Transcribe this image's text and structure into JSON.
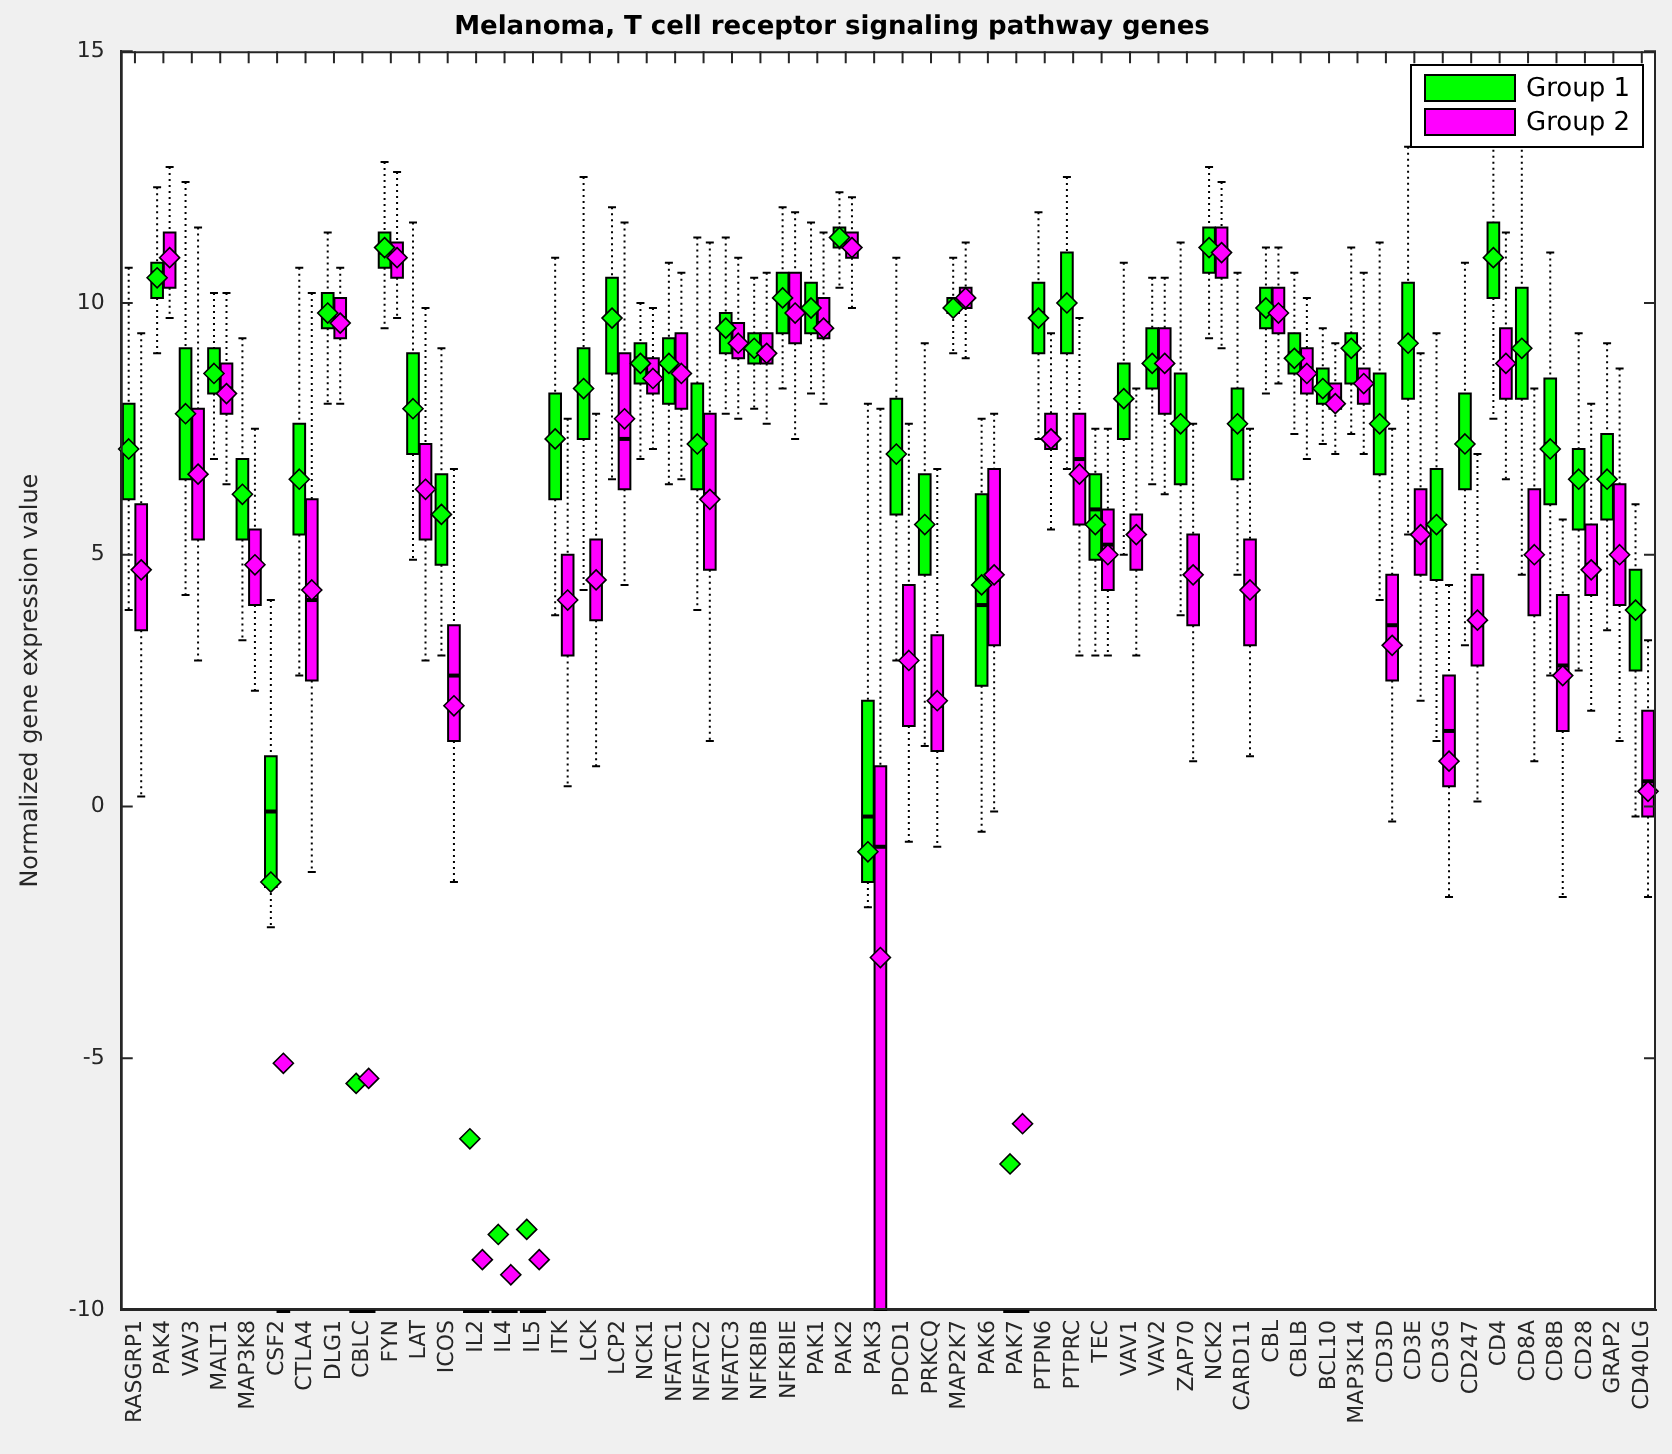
{
  "chart_data": {
    "type": "box",
    "title": "Melanoma, T cell receptor signaling pathway genes",
    "ylabel": "Normalized gene expression value",
    "categories": [
      "RASGRP1",
      "PAK4",
      "VAV3",
      "MALT1",
      "MAP3K8",
      "CSF2",
      "CTLA4",
      "DLG1",
      "CBLC",
      "FYN",
      "LAT",
      "ICOS",
      "IL2",
      "IL4",
      "IL5",
      "ITK",
      "LCK",
      "LCP2",
      "NCK1",
      "NFATC1",
      "NFATC2",
      "NFATC3",
      "NFKBIB",
      "NFKBIE",
      "PAK1",
      "PAK2",
      "PAK3",
      "PDCD1",
      "PRKCQ",
      "MAP2K7",
      "PAK6",
      "PAK7",
      "PTPN6",
      "PTPRC",
      "TEC",
      "VAV1",
      "VAV2",
      "ZAP70",
      "NCK2",
      "CARD11",
      "CBL",
      "CBLB",
      "BCL10",
      "MAP3K14",
      "CD3D",
      "CD3E",
      "CD3G",
      "CD247",
      "CD4",
      "CD8A",
      "CD8B",
      "CD28",
      "GRAP2",
      "CD40LG"
    ],
    "ylim": [
      -10,
      15
    ],
    "yticks": [
      -10,
      -5,
      0,
      5,
      10,
      15
    ],
    "legend": "top right",
    "marker": "diamond",
    "series": [
      {
        "name": "Group 1",
        "color": "#00ff00",
        "boxes": [
          {
            "low": 3.9,
            "q1": 6.1,
            "median": 7.1,
            "q3": 8.0,
            "high": 10.7,
            "mean": 7.1
          },
          {
            "low": 9.0,
            "q1": 10.1,
            "median": 10.6,
            "q3": 10.8,
            "high": 12.3,
            "mean": 10.5
          },
          {
            "low": 4.2,
            "q1": 6.5,
            "median": 7.8,
            "q3": 9.1,
            "high": 12.4,
            "mean": 7.8
          },
          {
            "low": 6.9,
            "q1": 8.2,
            "median": 8.6,
            "q3": 9.1,
            "high": 10.2,
            "mean": 8.6
          },
          {
            "low": 3.3,
            "q1": 5.3,
            "median": 6.2,
            "q3": 6.9,
            "high": 9.3,
            "mean": 6.2
          },
          {
            "low": -2.4,
            "q1": -1.6,
            "median": -0.1,
            "q3": 1.0,
            "high": 4.1,
            "mean": -1.5
          },
          {
            "low": 2.6,
            "q1": 5.4,
            "median": 6.5,
            "q3": 7.6,
            "high": 10.7,
            "mean": 6.5
          },
          {
            "low": 8.0,
            "q1": 9.5,
            "median": 9.8,
            "q3": 10.2,
            "high": 11.4,
            "mean": 9.8
          },
          {
            "low": -10,
            "q1": -10,
            "median": -10,
            "q3": -10,
            "high": -10,
            "mean": -5.5
          },
          {
            "low": 9.5,
            "q1": 10.7,
            "median": 11.0,
            "q3": 11.4,
            "high": 12.8,
            "mean": 11.1
          },
          {
            "low": 4.9,
            "q1": 7.0,
            "median": 7.9,
            "q3": 9.0,
            "high": 11.6,
            "mean": 7.9
          },
          {
            "low": 3.0,
            "q1": 4.8,
            "median": 5.8,
            "q3": 6.6,
            "high": 9.1,
            "mean": 5.8
          },
          {
            "low": -10,
            "q1": -10,
            "median": -10,
            "q3": -10,
            "high": -10,
            "mean": -6.6
          },
          {
            "low": -10,
            "q1": -10,
            "median": -10,
            "q3": -10,
            "high": -10,
            "mean": -8.5
          },
          {
            "low": -10,
            "q1": -10,
            "median": -10,
            "q3": -10,
            "high": -10,
            "mean": -8.4
          },
          {
            "low": 3.8,
            "q1": 6.1,
            "median": 7.3,
            "q3": 8.2,
            "high": 10.9,
            "mean": 7.3
          },
          {
            "low": 4.3,
            "q1": 7.3,
            "median": 8.3,
            "q3": 9.1,
            "high": 12.5,
            "mean": 8.3
          },
          {
            "low": 6.5,
            "q1": 8.6,
            "median": 9.7,
            "q3": 10.5,
            "high": 11.9,
            "mean": 9.7
          },
          {
            "low": 6.9,
            "q1": 8.4,
            "median": 8.9,
            "q3": 9.2,
            "high": 10.0,
            "mean": 8.8
          },
          {
            "low": 6.4,
            "q1": 8.0,
            "median": 8.8,
            "q3": 9.3,
            "high": 10.8,
            "mean": 8.8
          },
          {
            "low": 3.9,
            "q1": 6.3,
            "median": 7.2,
            "q3": 8.4,
            "high": 11.3,
            "mean": 7.2
          },
          {
            "low": 7.8,
            "q1": 9.0,
            "median": 9.5,
            "q3": 9.8,
            "high": 11.3,
            "mean": 9.5
          },
          {
            "low": 7.9,
            "q1": 8.8,
            "median": 9.1,
            "q3": 9.4,
            "high": 10.5,
            "mean": 9.1
          },
          {
            "low": 8.3,
            "q1": 9.4,
            "median": 10.1,
            "q3": 10.6,
            "high": 11.9,
            "mean": 10.1
          },
          {
            "low": 8.2,
            "q1": 9.4,
            "median": 9.9,
            "q3": 10.4,
            "high": 11.6,
            "mean": 9.9
          },
          {
            "low": 10.3,
            "q1": 11.1,
            "median": 11.3,
            "q3": 11.5,
            "high": 12.2,
            "mean": 11.3
          },
          {
            "low": -2.0,
            "q1": -1.5,
            "median": -0.2,
            "q3": 2.1,
            "high": 8.0,
            "mean": -0.9
          },
          {
            "low": 2.9,
            "q1": 5.8,
            "median": 7.0,
            "q3": 8.1,
            "high": 10.9,
            "mean": 7.0
          },
          {
            "low": 1.2,
            "q1": 4.6,
            "median": 5.6,
            "q3": 6.6,
            "high": 9.2,
            "mean": 5.6
          },
          {
            "low": 9.0,
            "q1": 9.8,
            "median": 9.9,
            "q3": 10.1,
            "high": 10.9,
            "mean": 9.9
          },
          {
            "low": -0.5,
            "q1": 2.4,
            "median": 4.0,
            "q3": 6.2,
            "high": 7.7,
            "mean": 4.4
          },
          {
            "low": -10,
            "q1": -10,
            "median": -10,
            "q3": -10,
            "high": -10,
            "mean": -7.1
          },
          {
            "low": 7.3,
            "q1": 9.0,
            "median": 9.8,
            "q3": 10.4,
            "high": 11.8,
            "mean": 9.7
          },
          {
            "low": 6.7,
            "q1": 9.0,
            "median": 10.0,
            "q3": 11.0,
            "high": 12.5,
            "mean": 10.0
          },
          {
            "low": 3.0,
            "q1": 4.9,
            "median": 5.9,
            "q3": 6.6,
            "high": 7.5,
            "mean": 5.6
          },
          {
            "low": 5.0,
            "q1": 7.3,
            "median": 8.1,
            "q3": 8.8,
            "high": 10.8,
            "mean": 8.1
          },
          {
            "low": 6.4,
            "q1": 8.3,
            "median": 8.8,
            "q3": 9.5,
            "high": 10.5,
            "mean": 8.8
          },
          {
            "low": 3.8,
            "q1": 6.4,
            "median": 7.6,
            "q3": 8.6,
            "high": 11.2,
            "mean": 7.6
          },
          {
            "low": 9.3,
            "q1": 10.6,
            "median": 11.1,
            "q3": 11.5,
            "high": 12.7,
            "mean": 11.1
          },
          {
            "low": 4.6,
            "q1": 6.5,
            "median": 7.5,
            "q3": 8.3,
            "high": 10.6,
            "mean": 7.6
          },
          {
            "low": 8.2,
            "q1": 9.5,
            "median": 9.9,
            "q3": 10.3,
            "high": 11.1,
            "mean": 9.9
          },
          {
            "low": 7.4,
            "q1": 8.6,
            "median": 9.0,
            "q3": 9.4,
            "high": 10.6,
            "mean": 8.9
          },
          {
            "low": 7.2,
            "q1": 8.0,
            "median": 8.3,
            "q3": 8.7,
            "high": 9.5,
            "mean": 8.3
          },
          {
            "low": 7.4,
            "q1": 8.4,
            "median": 9.0,
            "q3": 9.4,
            "high": 11.1,
            "mean": 9.1
          },
          {
            "low": 4.1,
            "q1": 6.6,
            "median": 7.6,
            "q3": 8.6,
            "high": 11.2,
            "mean": 7.6
          },
          {
            "low": 5.4,
            "q1": 8.1,
            "median": 9.2,
            "q3": 10.4,
            "high": 13.1,
            "mean": 9.2
          },
          {
            "low": 1.3,
            "q1": 4.5,
            "median": 5.6,
            "q3": 6.7,
            "high": 9.4,
            "mean": 5.6
          },
          {
            "low": 3.2,
            "q1": 6.3,
            "median": 7.2,
            "q3": 8.2,
            "high": 10.8,
            "mean": 7.2
          },
          {
            "low": 7.7,
            "q1": 10.1,
            "median": 10.9,
            "q3": 11.6,
            "high": 13.4,
            "mean": 10.9
          },
          {
            "low": 4.6,
            "q1": 8.1,
            "median": 9.2,
            "q3": 10.3,
            "high": 13.4,
            "mean": 9.1
          },
          {
            "low": 2.6,
            "q1": 6.0,
            "median": 7.2,
            "q3": 8.5,
            "high": 11.0,
            "mean": 7.1
          },
          {
            "low": 2.7,
            "q1": 5.5,
            "median": 6.5,
            "q3": 7.1,
            "high": 9.4,
            "mean": 6.5
          },
          {
            "low": 3.5,
            "q1": 5.7,
            "median": 6.4,
            "q3": 7.4,
            "high": 9.2,
            "mean": 6.5
          },
          {
            "low": -0.2,
            "q1": 2.7,
            "median": 3.9,
            "q3": 4.7,
            "high": 6.0,
            "mean": 3.9
          }
        ]
      },
      {
        "name": "Group 2",
        "color": "#ff00ff",
        "boxes": [
          {
            "low": 0.2,
            "q1": 3.5,
            "median": 4.7,
            "q3": 6.0,
            "high": 9.4,
            "mean": 4.7
          },
          {
            "low": 9.7,
            "q1": 10.3,
            "median": 10.9,
            "q3": 11.4,
            "high": 12.7,
            "mean": 10.9
          },
          {
            "low": 2.9,
            "q1": 5.3,
            "median": 6.6,
            "q3": 7.9,
            "high": 11.5,
            "mean": 6.6
          },
          {
            "low": 6.4,
            "q1": 7.8,
            "median": 8.3,
            "q3": 8.8,
            "high": 10.2,
            "mean": 8.2
          },
          {
            "low": 2.3,
            "q1": 4.0,
            "median": 4.8,
            "q3": 5.5,
            "high": 7.5,
            "mean": 4.8
          },
          {
            "low": -10,
            "q1": -10,
            "median": -10,
            "q3": -10,
            "high": -10,
            "mean": -5.1
          },
          {
            "low": -1.3,
            "q1": 2.5,
            "median": 4.1,
            "q3": 6.1,
            "high": 10.2,
            "mean": 4.3
          },
          {
            "low": 8.0,
            "q1": 9.3,
            "median": 9.7,
            "q3": 10.1,
            "high": 10.7,
            "mean": 9.6
          },
          {
            "low": -10,
            "q1": -10,
            "median": -10,
            "q3": -10,
            "high": -10,
            "mean": -5.4
          },
          {
            "low": 9.7,
            "q1": 10.5,
            "median": 10.9,
            "q3": 11.2,
            "high": 12.6,
            "mean": 10.9
          },
          {
            "low": 2.9,
            "q1": 5.3,
            "median": 6.3,
            "q3": 7.2,
            "high": 9.9,
            "mean": 6.3
          },
          {
            "low": -1.5,
            "q1": 1.3,
            "median": 2.6,
            "q3": 3.6,
            "high": 6.7,
            "mean": 2.0
          },
          {
            "low": -10,
            "q1": -10,
            "median": -10,
            "q3": -10,
            "high": -10,
            "mean": -9.0
          },
          {
            "low": -10,
            "q1": -10,
            "median": -10,
            "q3": -10,
            "high": -10,
            "mean": -9.3
          },
          {
            "low": -10,
            "q1": -10,
            "median": -10,
            "q3": -10,
            "high": -10,
            "mean": -9.0
          },
          {
            "low": 0.4,
            "q1": 3.0,
            "median": 4.1,
            "q3": 5.0,
            "high": 7.7,
            "mean": 4.1
          },
          {
            "low": 0.8,
            "q1": 3.7,
            "median": 4.5,
            "q3": 5.3,
            "high": 7.8,
            "mean": 4.5
          },
          {
            "low": 4.4,
            "q1": 6.3,
            "median": 7.3,
            "q3": 9.0,
            "high": 11.6,
            "mean": 7.7
          },
          {
            "low": 7.1,
            "q1": 8.2,
            "median": 8.6,
            "q3": 8.9,
            "high": 9.9,
            "mean": 8.5
          },
          {
            "low": 6.5,
            "q1": 7.9,
            "median": 8.7,
            "q3": 9.4,
            "high": 10.6,
            "mean": 8.6
          },
          {
            "low": 1.3,
            "q1": 4.7,
            "median": 6.2,
            "q3": 7.8,
            "high": 11.2,
            "mean": 6.1
          },
          {
            "low": 7.7,
            "q1": 8.9,
            "median": 9.2,
            "q3": 9.6,
            "high": 10.9,
            "mean": 9.2
          },
          {
            "low": 7.6,
            "q1": 8.8,
            "median": 9.1,
            "q3": 9.4,
            "high": 10.6,
            "mean": 9.0
          },
          {
            "low": 7.3,
            "q1": 9.2,
            "median": 9.8,
            "q3": 10.6,
            "high": 11.8,
            "mean": 9.8
          },
          {
            "low": 8.0,
            "q1": 9.3,
            "median": 9.6,
            "q3": 10.1,
            "high": 11.4,
            "mean": 9.5
          },
          {
            "low": 9.9,
            "q1": 10.9,
            "median": 11.1,
            "q3": 11.4,
            "high": 12.1,
            "mean": 11.1
          },
          {
            "low": -10,
            "q1": -10,
            "median": -0.8,
            "q3": 0.8,
            "high": 7.9,
            "mean": -3.0
          },
          {
            "low": -0.7,
            "q1": 1.6,
            "median": 2.9,
            "q3": 4.4,
            "high": 7.6,
            "mean": 2.9
          },
          {
            "low": -0.8,
            "q1": 1.1,
            "median": 2.0,
            "q3": 3.4,
            "high": 6.7,
            "mean": 2.1
          },
          {
            "low": 8.9,
            "q1": 9.9,
            "median": 10.1,
            "q3": 10.3,
            "high": 11.2,
            "mean": 10.1
          },
          {
            "low": -0.1,
            "q1": 3.2,
            "median": 4.5,
            "q3": 6.7,
            "high": 7.8,
            "mean": 4.6
          },
          {
            "low": -10,
            "q1": -10,
            "median": -10,
            "q3": -10,
            "high": -10,
            "mean": -6.3
          },
          {
            "low": 5.5,
            "q1": 7.1,
            "median": 7.4,
            "q3": 7.8,
            "high": 9.4,
            "mean": 7.3
          },
          {
            "low": 3.0,
            "q1": 5.6,
            "median": 6.9,
            "q3": 7.8,
            "high": 9.7,
            "mean": 6.6
          },
          {
            "low": 3.0,
            "q1": 4.3,
            "median": 5.2,
            "q3": 5.9,
            "high": 7.5,
            "mean": 5.0
          },
          {
            "low": 3.0,
            "q1": 4.7,
            "median": 5.4,
            "q3": 5.8,
            "high": 8.3,
            "mean": 5.4
          },
          {
            "low": 6.2,
            "q1": 7.8,
            "median": 8.8,
            "q3": 9.5,
            "high": 10.5,
            "mean": 8.8
          },
          {
            "low": 0.9,
            "q1": 3.6,
            "median": 4.7,
            "q3": 5.4,
            "high": 7.6,
            "mean": 4.6
          },
          {
            "low": 9.1,
            "q1": 10.5,
            "median": 11.0,
            "q3": 11.5,
            "high": 12.4,
            "mean": 11.0
          },
          {
            "low": 1.0,
            "q1": 3.2,
            "median": 4.3,
            "q3": 5.3,
            "high": 7.5,
            "mean": 4.3
          },
          {
            "low": 8.4,
            "q1": 9.4,
            "median": 9.9,
            "q3": 10.3,
            "high": 11.1,
            "mean": 9.8
          },
          {
            "low": 6.9,
            "q1": 8.2,
            "median": 8.7,
            "q3": 9.1,
            "high": 10.1,
            "mean": 8.6
          },
          {
            "low": 7.0,
            "q1": 7.9,
            "median": 8.1,
            "q3": 8.4,
            "high": 9.2,
            "mean": 8.0
          },
          {
            "low": 7.0,
            "q1": 8.0,
            "median": 8.4,
            "q3": 8.7,
            "high": 10.6,
            "mean": 8.4
          },
          {
            "low": -0.3,
            "q1": 2.5,
            "median": 3.6,
            "q3": 4.6,
            "high": 7.5,
            "mean": 3.2
          },
          {
            "low": 2.1,
            "q1": 4.6,
            "median": 5.3,
            "q3": 6.3,
            "high": 9.0,
            "mean": 5.4
          },
          {
            "low": -1.8,
            "q1": 0.4,
            "median": 1.5,
            "q3": 2.6,
            "high": 4.4,
            "mean": 0.9
          },
          {
            "low": 0.1,
            "q1": 2.8,
            "median": 3.6,
            "q3": 4.6,
            "high": 7.0,
            "mean": 3.7
          },
          {
            "low": 6.5,
            "q1": 8.1,
            "median": 8.8,
            "q3": 9.5,
            "high": 11.4,
            "mean": 8.8
          },
          {
            "low": 0.9,
            "q1": 3.8,
            "median": 5.0,
            "q3": 6.3,
            "high": 8.3,
            "mean": 5.0
          },
          {
            "low": -1.8,
            "q1": 1.5,
            "median": 2.8,
            "q3": 4.2,
            "high": 5.7,
            "mean": 2.6
          },
          {
            "low": 1.9,
            "q1": 4.2,
            "median": 4.8,
            "q3": 5.6,
            "high": 8.0,
            "mean": 4.7
          },
          {
            "low": 1.3,
            "q1": 4.0,
            "median": 4.9,
            "q3": 6.4,
            "high": 8.7,
            "mean": 5.0
          },
          {
            "low": -1.8,
            "q1": -0.2,
            "median": 0.5,
            "q3": 1.9,
            "high": 3.3,
            "mean": 0.3
          }
        ]
      }
    ]
  }
}
